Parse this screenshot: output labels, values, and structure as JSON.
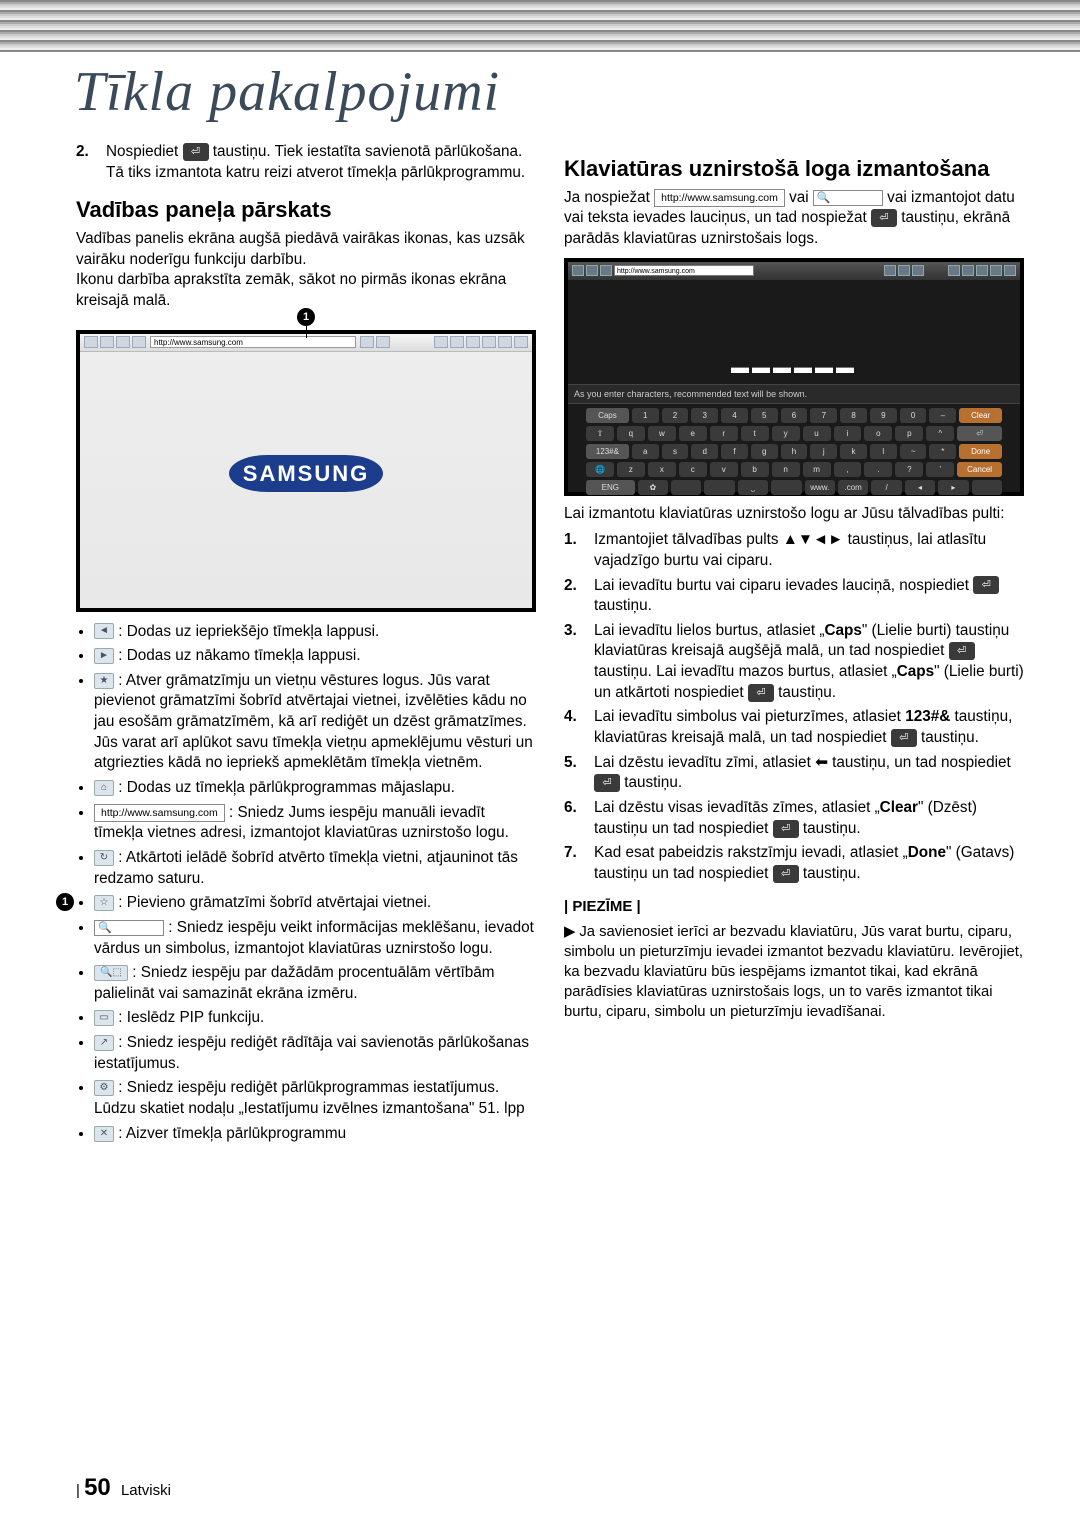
{
  "header": {
    "title": "Tīkla pakalpojumi"
  },
  "left": {
    "step2_num": "2.",
    "step2_text_a": "Nospiediet ",
    "step2_text_b": " taustiņu. Tiek iestatīta savienotā pārlūkošana. Tā tiks izmantota katru reizi atverot tīmekļa pārlūkprogrammu.",
    "h2": "Vadības paneļa pārskats",
    "intro": "Vadības panelis ekrāna augšā piedāvā vairākas ikonas, kas uzsāk vairāku noderīgu funkciju darbību.\nIkonu darbība aprakstīta zemāk, sākot no pirmās ikonas ekrāna kreisajā malā.",
    "circle1": "1",
    "bar_url": "http://www.samsung.com",
    "logo": "SAMSUNG",
    "items": [
      {
        "icon": "◄",
        "text": ": Dodas uz iepriekšējo tīmekļa lappusi."
      },
      {
        "icon": "►",
        "text": ": Dodas uz nākamo tīmekļa lappusi."
      },
      {
        "icon": "★",
        "text": ": Atver grāmatzīmju un vietņu vēstures logus. Jūs varat pievienot grāmatzīmi šobrīd atvērtajai vietnei, izvēlēties kādu no jau esošām grāmatzīmēm, kā arī rediģēt un dzēst grāmatzīmes. Jūs varat arī aplūkot savu tīmekļa vietņu apmeklējumu vēsturi un atgriezties kādā no iepriekš apmeklētām tīmekļa vietnēm."
      },
      {
        "icon": "⌂",
        "text": ": Dodas uz tīmekļa pārlūkprogrammas mājaslapu."
      },
      {
        "icon_url": "http://www.samsung.com",
        "text": ": Sniedz Jums iespēju manuāli ievadīt tīmekļa vietnes adresi, izmantojot klaviatūras uznirstošo logu."
      },
      {
        "icon": "↻",
        "text": ": Atkārtoti ielādē šobrīd atvērto tīmekļa vietni, atjauninot tās redzamo saturu."
      },
      {
        "icon": "☆",
        "text": ": Pievieno grāmatzīmi šobrīd atvērtajai vietnei."
      },
      {
        "icon_search": "🔍",
        "text": ": Sniedz iespēju veikt informācijas meklēšanu, ievadot vārdus un simbolus, izmantojot klaviatūras uznirstošo logu."
      },
      {
        "icon": "⬚",
        "text": ": Sniedz iespēju par dažādām procentuālām vērtībām palielināt vai samazināt ekrāna izmēru."
      },
      {
        "icon": "▭",
        "text": ": Ieslēdz PIP funkciju."
      },
      {
        "icon": "↗",
        "text": ": Sniedz iespēju rediģēt rādītāja vai savienotās pārlūkošanas iestatījumus."
      },
      {
        "icon": "⚙",
        "text": ": Sniedz iespēju rediģēt pārlūkprogrammas iestatījumus. Lūdzu skatiet nodaļu „Iestatījumu izvēlnes izmantošana\" 51. lpp"
      },
      {
        "icon": "✕",
        "text": ": Aizver tīmekļa pārlūkprogrammu"
      }
    ]
  },
  "right": {
    "h2": "Klaviatūras uznirstošā loga izmantošana",
    "p1_a": "Ja nospiežat ",
    "p1_url": "http://www.samsung.com",
    "p1_b": " vai ",
    "p1_c": " vai izmantojot datu vai teksta ievades lauciņus, un tad nospiežat ",
    "p1_d": " taustiņu, ekrānā parādās klaviatūras uznirstošais logs.",
    "kb_url": "http://www.samsung.com",
    "kb_hint": "As you enter characters, recommended text will be shown.",
    "kb_rows": [
      [
        "Caps",
        "1",
        "2",
        "3",
        "4",
        "5",
        "6",
        "7",
        "8",
        "9",
        "0",
        "–",
        "Clear"
      ],
      [
        "⇧",
        "q",
        "w",
        "e",
        "r",
        "t",
        "y",
        "u",
        "i",
        "o",
        "p",
        "^",
        "⏎"
      ],
      [
        "123#&",
        "a",
        "s",
        "d",
        "f",
        "g",
        "h",
        "j",
        "k",
        "l",
        "~",
        "*",
        "Done"
      ],
      [
        "🌐",
        "z",
        "x",
        "c",
        "v",
        "b",
        "n",
        "m",
        ",",
        ".",
        "?",
        "’",
        "Cancel"
      ],
      [
        "ENG",
        "✿",
        "",
        "",
        "⎵",
        "",
        "www.",
        ".com",
        "/",
        "◂",
        "▸",
        ""
      ]
    ],
    "p2": "Lai izmantotu klaviatūras uznirstošo logu ar Jūsu tālvadības pulti:",
    "steps": [
      {
        "n": "1.",
        "t": "Izmantojiet tālvadības pults ▲▼◄► taustiņus, lai atlasītu vajadzīgo burtu vai ciparu."
      },
      {
        "n": "2.",
        "t_a": "Lai ievadītu burtu vai ciparu ievades lauciņā, nospiediet ",
        "t_b": " taustiņu."
      },
      {
        "n": "3.",
        "t_a": "Lai ievadītu lielos burtus, atlasiet „",
        "caps": "Caps",
        "t_a2": "\" (Lielie burti) taustiņu klaviatūras kreisajā augšējā malā, un tad nospiediet ",
        "t_b": " taustiņu. Lai ievadītu mazos burtus, atlasiet „",
        "caps2": "Caps",
        "t_c": "\" (Lielie burti) un atkārtoti nospiediet ",
        "t_d": " taustiņu."
      },
      {
        "n": "4.",
        "t_a": "Lai ievadītu simbolus vai pieturzīmes, atlasiet ",
        "sym": "123#&",
        "t_b": " taustiņu, klaviatūras kreisajā malā, un tad nospiediet ",
        "t_c": " taustiņu."
      },
      {
        "n": "5.",
        "t_a": "Lai dzēstu ievadītu zīmi, atlasiet ⬅ taustiņu, un tad nospiediet ",
        "t_b": " taustiņu."
      },
      {
        "n": "6.",
        "t_a": "Lai dzēstu visas ievadītās zīmes, atlasiet „",
        "clear": "Clear",
        "t_b": "\" (Dzēst) taustiņu un tad nospiediet ",
        "t_c": " taustiņu."
      },
      {
        "n": "7.",
        "t_a": "Kad esat pabeidzis rakstzīmju ievadi, atlasiet „",
        "done": "Done",
        "t_b": "\" (Gatavs) taustiņu un tad nospiediet ",
        "t_c": " taustiņu."
      }
    ],
    "note_label": "| PIEZĪME |",
    "note_text": "Ja savienosiet ierīci ar bezvadu klaviatūru, Jūs varat burtu, ciparu, simbolu un pieturzīmju ievadei izmantot bezvadu klaviatūru. Ievērojiet, ka bezvadu klaviatūru būs iespējams izmantot tikai, kad ekrānā parādīsies klaviatūras uznirstošais logs, un to varēs izmantot tikai burtu, ciparu, simbolu un pieturzīmju ievadīšanai."
  },
  "footer": {
    "page": "50",
    "lang": "Latviski"
  },
  "colors": {
    "title": "#3a4a5a",
    "samsung_blue": "#1b3d8b"
  }
}
